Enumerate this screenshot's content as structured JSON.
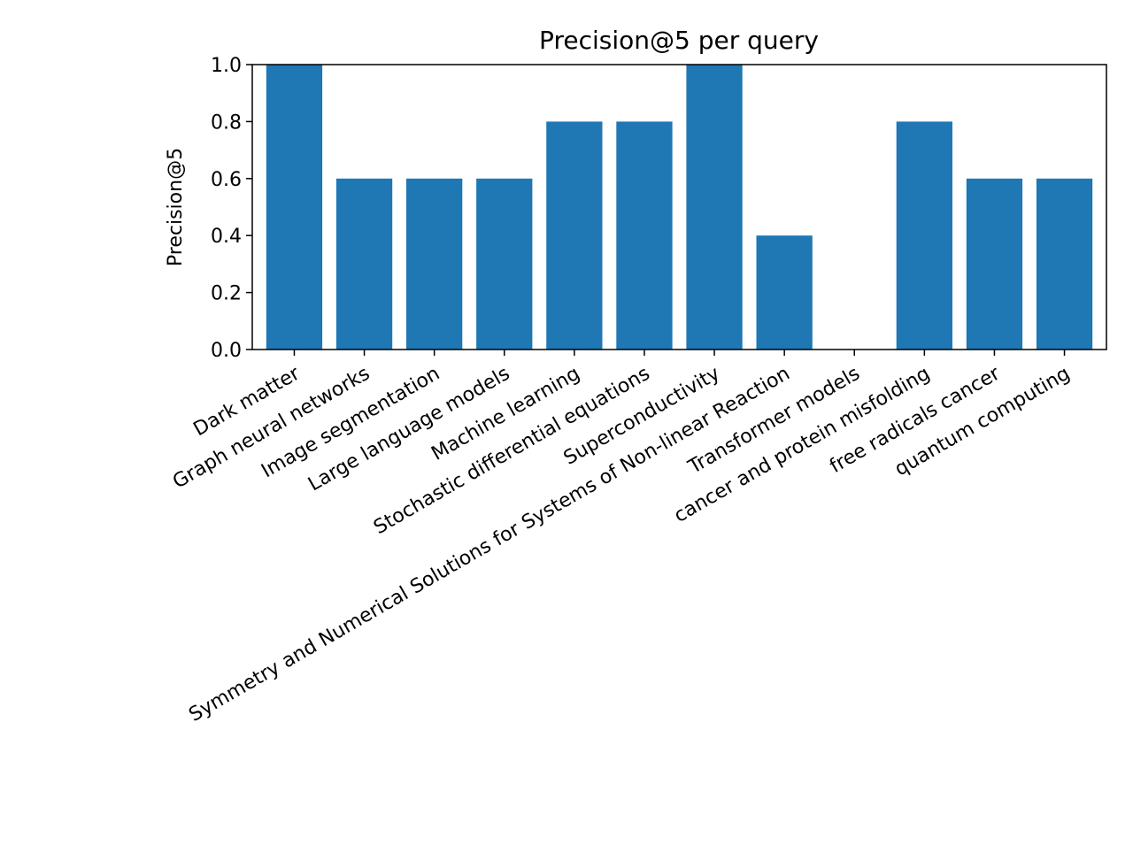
{
  "chart_data": {
    "type": "bar",
    "title": "Precision@5 per query",
    "xlabel": "",
    "ylabel": "Precision@5",
    "ylim": [
      0,
      1.0
    ],
    "yticks": [
      0.0,
      0.2,
      0.4,
      0.6,
      0.8,
      1.0
    ],
    "ytick_labels": [
      "0.0",
      "0.2",
      "0.4",
      "0.6",
      "0.8",
      "1.0"
    ],
    "grid": false,
    "bar_color": "#1f77b4",
    "categories": [
      "Dark matter",
      "Graph neural networks",
      "Image segmentation",
      "Large language models",
      "Machine learning",
      "Stochastic differential equations",
      "Superconductivity",
      "Symmetry and Numerical Solutions for Systems of Non-linear Reaction",
      "Transformer models",
      "cancer and protein misfolding",
      "free radicals cancer",
      "quantum computing"
    ],
    "values": [
      1.0,
      0.6,
      0.6,
      0.6,
      0.8,
      0.8,
      1.0,
      0.4,
      0.0,
      0.8,
      0.6,
      0.6
    ]
  }
}
